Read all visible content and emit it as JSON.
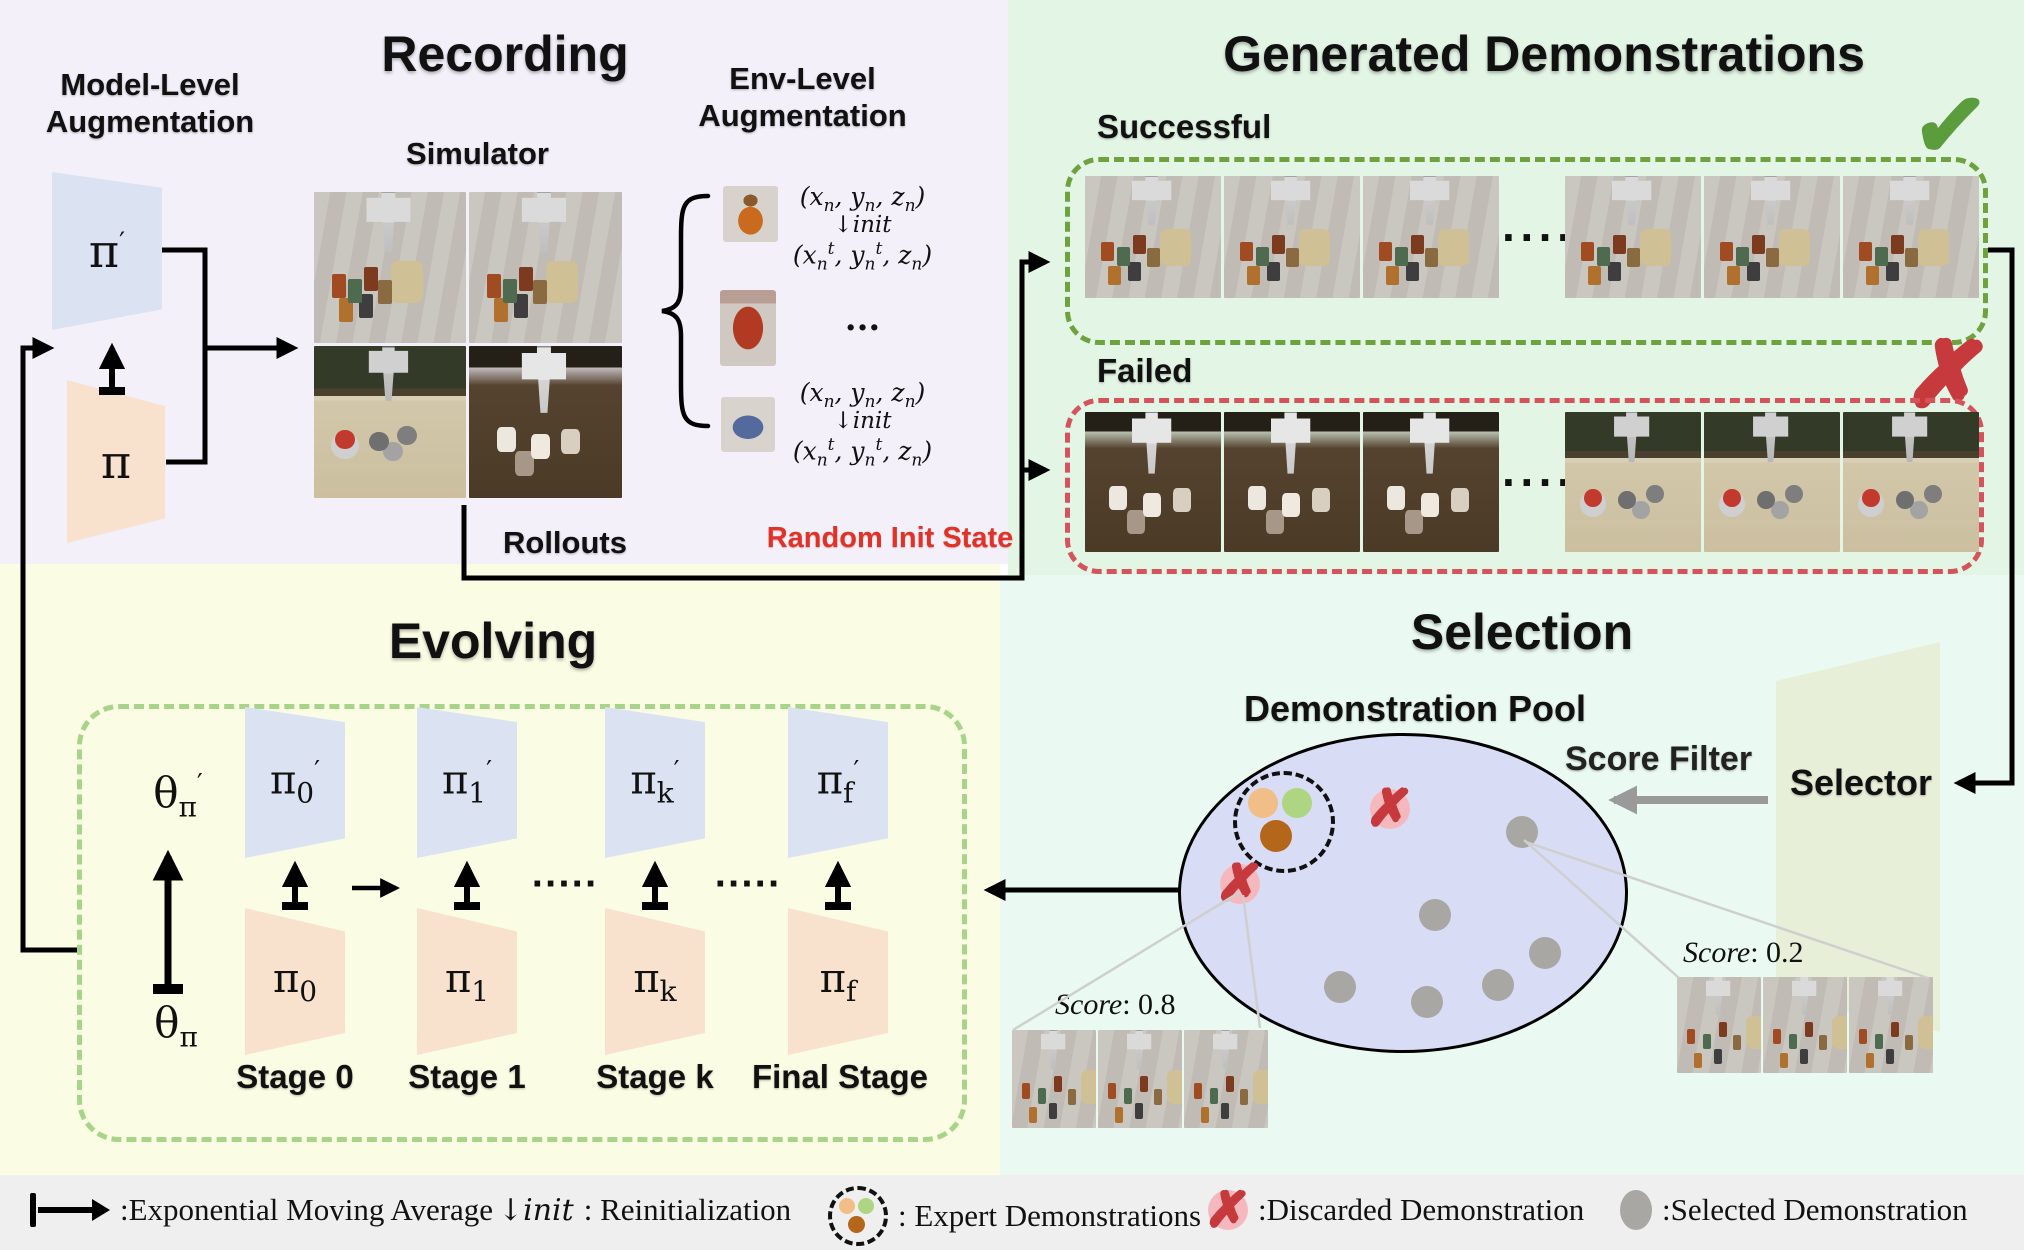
{
  "recording": {
    "title": "Recording",
    "model_aug_line1": "Model-Level",
    "model_aug_line2": "Augmentation",
    "simulator_label": "Simulator",
    "rollouts_label": "Rollouts",
    "pi_prime_html": "π<sup>′</sup>",
    "pi_html": "π",
    "sim_frames": [
      "cans",
      "cans",
      "kitchen",
      "mugs"
    ]
  },
  "env_aug": {
    "title_line1": "Env-Level",
    "title_line2": "Augmentation",
    "coord_html": "(x<sub>n</sub>, y<sub>n</sub>, z<sub>n</sub>)",
    "init_html": "↓init",
    "coord_t_html": "(x<sub>n</sub><sup>t</sup>, y<sub>n</sub><sup>t</sup>, z<sub>n</sub>)",
    "ellipsis": "···",
    "random_init_label": "Random Init State"
  },
  "generated": {
    "title": "Generated Demonstrations",
    "successful_label": "Successful",
    "failed_label": "Failed",
    "check_glyph": "✓",
    "cross_glyph": "✗",
    "dots": "····",
    "successful_frames": [
      "cans",
      "cans",
      "cans",
      "dots",
      "cans",
      "cans",
      "cans"
    ],
    "failed_frames": [
      "mugs",
      "mugs",
      "mugs",
      "dots",
      "kitchen",
      "kitchen",
      "kitchen"
    ]
  },
  "evolving": {
    "title": "Evolving",
    "theta_prime_html": "θ<sub>π</sub><sup>′</sup>",
    "theta_html": "θ<sub>π</sub>",
    "between_dots": "·····",
    "stages": [
      {
        "top_html": "π<sub>0</sub><sup>′</sup>",
        "bottom_html": "π<sub>0</sub>",
        "label": "Stage 0"
      },
      {
        "top_html": "π<sub>1</sub><sup>′</sup>",
        "bottom_html": "π<sub>1</sub>",
        "label": "Stage 1"
      },
      {
        "top_html": "π<sub>k</sub><sup>′</sup>",
        "bottom_html": "π<sub>k</sub>",
        "label": "Stage k"
      },
      {
        "top_html": "π<sub>f</sub><sup>′</sup>",
        "bottom_html": "π<sub>f</sub>",
        "label": "Final Stage"
      }
    ]
  },
  "selection": {
    "title": "Selection",
    "pool_label": "Demonstration Pool",
    "score_filter_label": "Score Filter",
    "selector_label": "Selector",
    "score_high_html": "<i>Score</i>: 0.8",
    "score_low_html": "<i>Score</i>: 0.2",
    "score_high_frames": [
      "cans",
      "cans",
      "cans"
    ],
    "score_low_frames": [
      "cans",
      "cans",
      "cans"
    ]
  },
  "legend": {
    "ema_label": ":Exponential Moving Average",
    "init_icon_html": "↓init",
    "init_label": ": Reinitialization",
    "expert_label": ": Expert Demonstrations",
    "discard_glyph": "✗",
    "discard_label": ":Discarded Demonstration",
    "selected_label": ":Selected Demonstration"
  },
  "colors": {
    "recording_bg": "#f3f0fa",
    "generated_bg": "#e3f5e5",
    "evolving_bg": "#fbfce4",
    "selection_bg": "#eafaf2",
    "legend_bg": "#efefef",
    "policy_blue": "#dbe3f3",
    "policy_peach": "#f8e2cd",
    "selector_green": "#e8efd9",
    "pool_fill": "#d8dcf4",
    "success_green": "#6da23e",
    "fail_red": "#d5545c",
    "x_red": "#c6393c",
    "selected_gray": "#a9a7a3",
    "expert_peach": "#f2be88",
    "expert_green": "#aed581",
    "expert_brown": "#b4661b",
    "random_init_red": "#e03227"
  }
}
